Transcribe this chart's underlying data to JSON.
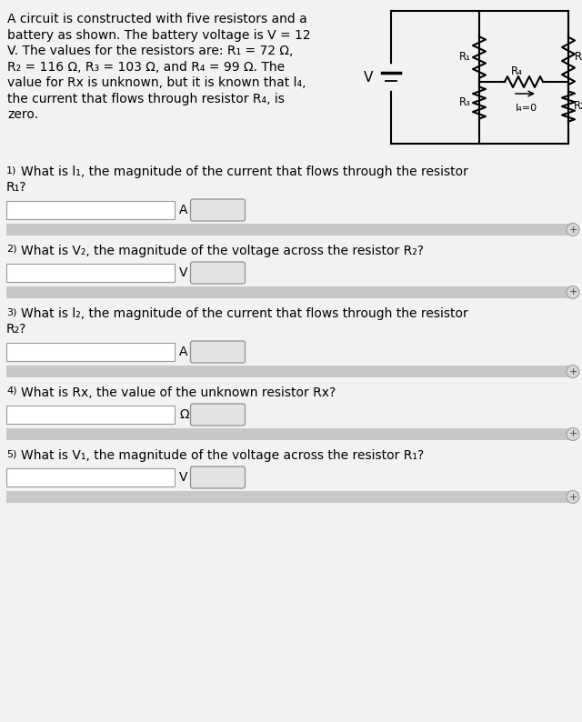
{
  "bg_color": "#f2f2f2",
  "white": "#ffffff",
  "black": "#000000",
  "gray_bar": "#c0c0c0",
  "gray_bar2": "#d0d0d0",
  "btn_color": "#e8e8e8",
  "btn_border": "#aaaaaa",
  "input_border": "#aaaaaa",
  "text_color": "#000000",
  "figsize": [
    6.4,
    7.94
  ],
  "dpi": 100,
  "intro_lines": [
    "A circuit is constructed with five resistors and a",
    "battery as shown. The battery voltage is V = 12",
    "V. The values for the resistors are: R₁ = 72 Ω,",
    "R₂ = 116 Ω, R₃ = 103 Ω, and R₄ = 99 Ω. The",
    "value for Rx is unknown, but it is known that l₄,",
    "the current that flows through resistor R₄, is",
    "zero."
  ],
  "questions": [
    {
      "num": "1",
      "text1": "What is l₁, the magnitude of the current that flows through the resistor",
      "text2": "R₁?",
      "unit": "A"
    },
    {
      "num": "2",
      "text1": "What is V₂, the magnitude of the voltage across the resistor R₂?",
      "text2": null,
      "unit": "V"
    },
    {
      "num": "3",
      "text1": "What is l₂, the magnitude of the current that flows through the resistor",
      "text2": "R₂?",
      "unit": "A"
    },
    {
      "num": "4",
      "text1": "What is Rx, the value of the unknown resistor Rx?",
      "text2": null,
      "unit": "Ω"
    },
    {
      "num": "5",
      "text1": "What is V₁, the magnitude of the voltage across the resistor R₁?",
      "text2": null,
      "unit": "V"
    }
  ]
}
